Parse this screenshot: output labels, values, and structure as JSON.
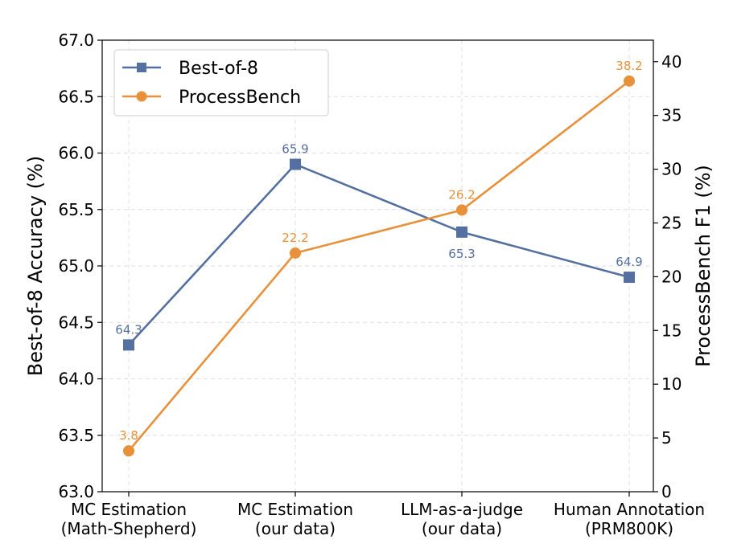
{
  "chart_data": {
    "type": "line",
    "categories": [
      [
        "MC Estimation",
        "(Math-Shepherd)"
      ],
      [
        "MC Estimation",
        "(our data)"
      ],
      [
        "LLM-as-a-judge",
        "(our data)"
      ],
      [
        "Human Annotation",
        "(PRM800K)"
      ]
    ],
    "ylabel_left": "Best-of-8 Accuracy (%)",
    "ylabel_right": "ProcessBench F1 (%)",
    "ylim_left": [
      63.0,
      67.0
    ],
    "yticks_left": [
      "63.0",
      "63.5",
      "64.0",
      "64.5",
      "65.0",
      "65.5",
      "66.0",
      "66.5",
      "67.0"
    ],
    "ylim_right": [
      0,
      42
    ],
    "yticks_right": [
      "0",
      "5",
      "10",
      "15",
      "20",
      "25",
      "30",
      "35",
      "40"
    ],
    "grid": true,
    "legend_position": "top-left",
    "series": [
      {
        "name": "Best-of-8",
        "axis": "left",
        "marker": "square",
        "color": "#5470a0",
        "values": [
          64.3,
          65.9,
          65.3,
          64.9
        ],
        "labels": [
          "64.3",
          "65.9",
          "65.3",
          "64.9"
        ]
      },
      {
        "name": "ProcessBench",
        "axis": "right",
        "marker": "circle",
        "color": "#e8913a",
        "values": [
          3.8,
          22.2,
          26.2,
          38.2
        ],
        "labels": [
          "3.8",
          "22.2",
          "26.2",
          "38.2"
        ]
      }
    ]
  }
}
